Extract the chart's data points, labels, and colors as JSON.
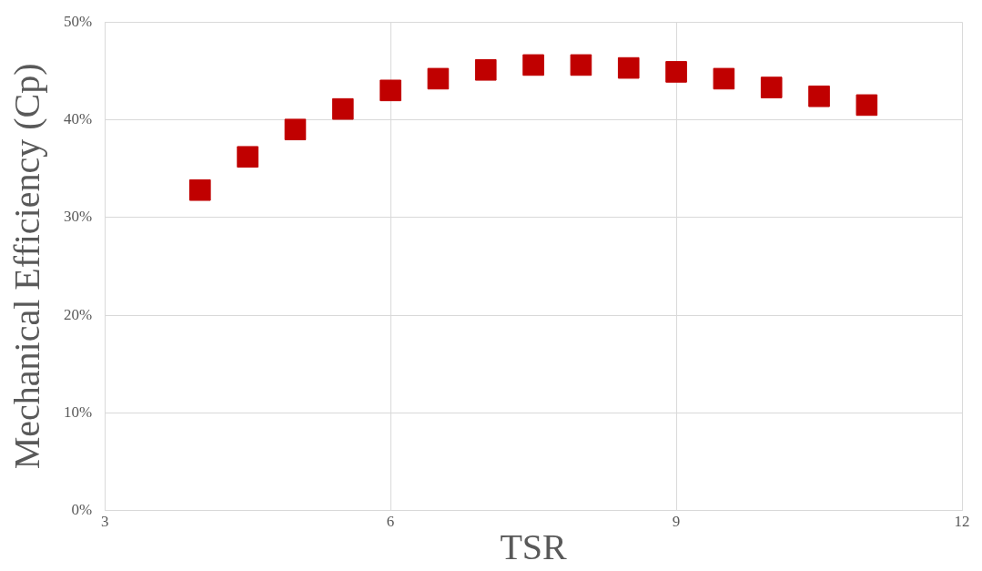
{
  "chart_data": {
    "type": "scatter",
    "xlabel": "TSR",
    "ylabel": "Mechanical Efficiency (Cp)",
    "x": [
      4,
      4.5,
      5,
      5.5,
      6,
      6.5,
      7,
      7.5,
      8,
      8.5,
      9,
      9.5,
      10,
      10.5,
      11
    ],
    "series": [
      {
        "color": "#c00000",
        "values": [
          32.8,
          36.2,
          39.0,
          41.1,
          43.0,
          44.2,
          45.1,
          45.6,
          45.6,
          45.3,
          44.9,
          44.2,
          43.3,
          42.4,
          41.5
        ]
      }
    ],
    "xlim": [
      3,
      12
    ],
    "xticks": [
      3,
      6,
      9,
      12
    ],
    "ylim": [
      0,
      50
    ],
    "yticks": [
      {
        "value": 0,
        "label": "0%"
      },
      {
        "value": 10,
        "label": "10%"
      },
      {
        "value": 20,
        "label": "20%"
      },
      {
        "value": 30,
        "label": "30%"
      },
      {
        "value": 40,
        "label": "40%"
      },
      {
        "value": 50,
        "label": "50%"
      }
    ],
    "grid": true,
    "legend": false,
    "marker": "square"
  }
}
